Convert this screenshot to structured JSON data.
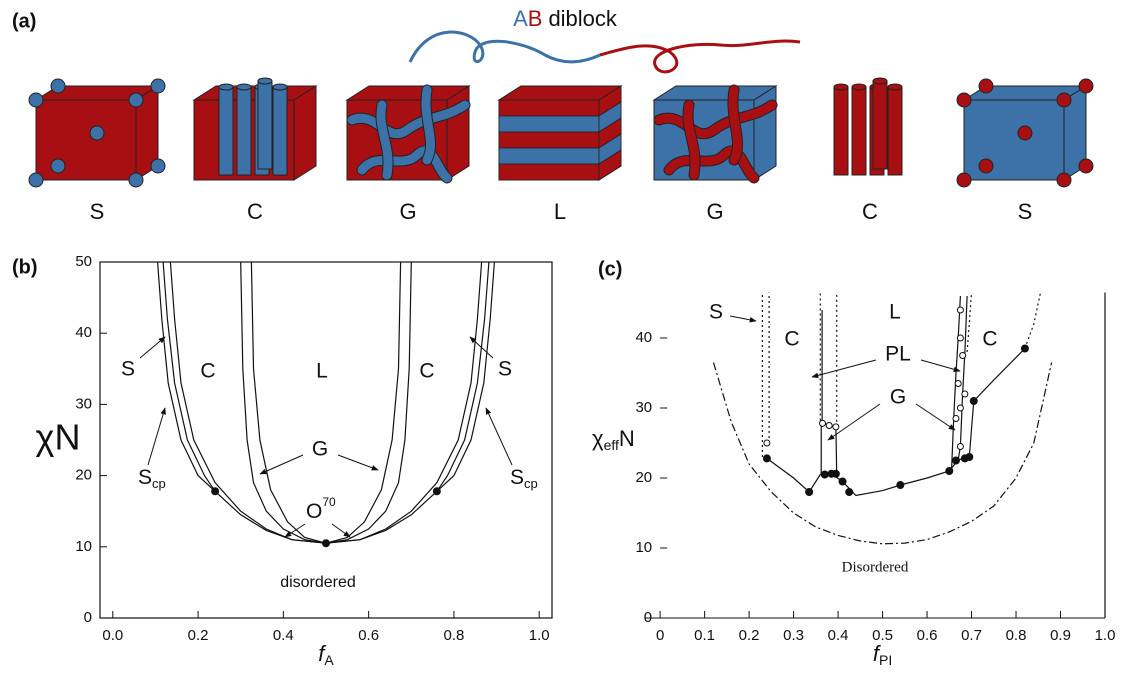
{
  "panel_a": {
    "label": "(a)",
    "title": [
      "A",
      "B",
      "diblock"
    ],
    "structures": [
      "S",
      "C",
      "G",
      "L",
      "G",
      "C",
      "S"
    ]
  },
  "chart_data": [
    {
      "type": "line",
      "panel_label": "(b)",
      "ylabel": "χN",
      "xlabel": "f",
      "xlabel_sub": "A",
      "xlim": [
        -0.03,
        1.03
      ],
      "ylim": [
        0,
        50
      ],
      "xticks": [
        {
          "value": 0,
          "label": "0.0"
        },
        {
          "value": 0.2,
          "label": "0.2"
        },
        {
          "value": 0.4,
          "label": "0.4"
        },
        {
          "value": 0.6,
          "label": "0.6"
        },
        {
          "value": 0.8,
          "label": "0.8"
        },
        {
          "value": 1,
          "label": "1.0"
        }
      ],
      "yticks": [
        0,
        10,
        20,
        30,
        40,
        50
      ],
      "region_labels": [
        "S",
        "C",
        "L",
        "C",
        "S",
        "G",
        "disordered"
      ],
      "sub_labels": [
        {
          "main": "S",
          "sub": "cp"
        },
        {
          "main": "S",
          "sub": "cp"
        }
      ],
      "sup_label": {
        "main": "O",
        "sup": "70"
      },
      "color": "#111111",
      "lines": [
        {
          "style": "solid",
          "x": [
            0.105,
            0.115,
            0.13,
            0.16,
            0.2,
            0.24,
            0.3,
            0.36,
            0.42,
            0.5
          ],
          "y": [
            50,
            42,
            33,
            25,
            20,
            17.8,
            14.5,
            12.3,
            11,
            10.5
          ]
        },
        {
          "style": "solid",
          "x": [
            0.118,
            0.128,
            0.145,
            0.175,
            0.215,
            0.24
          ],
          "y": [
            50,
            42,
            33,
            25,
            20,
            17.8
          ]
        },
        {
          "style": "solid",
          "x": [
            0.135,
            0.145,
            0.16,
            0.19,
            0.24,
            0.3,
            0.36,
            0.42,
            0.5
          ],
          "y": [
            50,
            42,
            33,
            25,
            19,
            15,
            12.5,
            11,
            10.5
          ]
        },
        {
          "style": "solid",
          "x": [
            0.3,
            0.305,
            0.315,
            0.33,
            0.36,
            0.4,
            0.45,
            0.5
          ],
          "y": [
            50,
            35,
            25,
            19,
            15,
            12.5,
            11,
            10.5
          ]
        },
        {
          "style": "solid",
          "x": [
            0.325,
            0.33,
            0.345,
            0.37,
            0.41,
            0.45,
            0.5
          ],
          "y": [
            50,
            35,
            25,
            18,
            13.5,
            11.3,
            10.5
          ]
        },
        {
          "style": "solid",
          "x": [
            0.895,
            0.885,
            0.87,
            0.84,
            0.8,
            0.76,
            0.7,
            0.64,
            0.58,
            0.5
          ],
          "y": [
            50,
            42,
            33,
            25,
            20,
            17.8,
            14.5,
            12.3,
            11,
            10.5
          ]
        },
        {
          "style": "solid",
          "x": [
            0.882,
            0.872,
            0.855,
            0.825,
            0.785,
            0.76
          ],
          "y": [
            50,
            42,
            33,
            25,
            20,
            17.8
          ]
        },
        {
          "style": "solid",
          "x": [
            0.865,
            0.855,
            0.84,
            0.81,
            0.76,
            0.7,
            0.64,
            0.58,
            0.5
          ],
          "y": [
            50,
            42,
            33,
            25,
            19,
            15,
            12.5,
            11,
            10.5
          ]
        },
        {
          "style": "solid",
          "x": [
            0.7,
            0.695,
            0.685,
            0.67,
            0.64,
            0.6,
            0.55,
            0.5
          ],
          "y": [
            50,
            35,
            25,
            19,
            15,
            12.5,
            11,
            10.5
          ]
        },
        {
          "style": "solid",
          "x": [
            0.675,
            0.67,
            0.655,
            0.63,
            0.59,
            0.55,
            0.5
          ],
          "y": [
            50,
            35,
            25,
            18,
            13.5,
            11.3,
            10.5
          ]
        }
      ],
      "filled_points": {
        "x": [
          0.24,
          0.5,
          0.76
        ],
        "y": [
          17.8,
          10.5,
          17.8
        ]
      }
    },
    {
      "type": "line",
      "panel_label": "(c)",
      "ylabel": "χ",
      "ylabel_sub": "eff",
      "ylabel_tail": "N",
      "xlabel": "f",
      "xlabel_sub": "PI",
      "xlim": [
        -0.034,
        1
      ],
      "ylim": [
        0,
        46.5
      ],
      "xticks": [
        0,
        0.1,
        0.2,
        0.3,
        0.4,
        0.5,
        0.6,
        0.7,
        0.8,
        0.9,
        {
          "value": 1,
          "label": "1.0"
        }
      ],
      "yticks": [
        0,
        10,
        20,
        30,
        40
      ],
      "region_labels": [
        "S",
        "C",
        "L",
        "C",
        "PL",
        "G",
        "Disordered"
      ],
      "color": "#111111",
      "lines": [
        {
          "style": "solid",
          "x": [
            0.24,
            0.3,
            0.335,
            0.36,
            0.385,
            0.41,
            0.44,
            0.5,
            0.54,
            0.6,
            0.65,
            0.67,
            0.695
          ],
          "y": [
            22.8,
            20,
            18,
            20.5,
            20.6,
            19.5,
            17.5,
            18.2,
            19,
            20,
            21,
            22.6,
            23
          ]
        },
        {
          "style": "solid",
          "x": [
            0.362,
            0.362,
            0.368,
            0.395,
            0.397
          ],
          "y": [
            20.5,
            27.5,
            27.8,
            27.3,
            20.6
          ]
        },
        {
          "style": "solid",
          "x": [
            0.364,
            0.364
          ],
          "y": [
            27.8,
            44
          ]
        },
        {
          "style": "solid",
          "x": [
            0.655,
            0.66,
            0.665,
            0.67,
            0.675
          ],
          "y": [
            21,
            28.5,
            35,
            40,
            46
          ]
        },
        {
          "style": "solid",
          "x": [
            0.67,
            0.675,
            0.68,
            0.685,
            0.69
          ],
          "y": [
            22.6,
            24.5,
            32,
            38,
            46
          ]
        },
        {
          "style": "solid",
          "x": [
            0.695,
            0.7,
            0.705,
            0.75,
            0.82
          ],
          "y": [
            23,
            27,
            31,
            34,
            38.5
          ]
        },
        {
          "style": "dotted",
          "x": [
            0.23,
            0.23
          ],
          "y": [
            23,
            46.5
          ]
        },
        {
          "style": "dotted",
          "x": [
            0.245,
            0.245
          ],
          "y": [
            25,
            46.5
          ]
        },
        {
          "style": "dotted",
          "x": [
            0.36,
            0.36
          ],
          "y": [
            27.5,
            46.5
          ]
        },
        {
          "style": "dotted",
          "x": [
            0.397,
            0.397
          ],
          "y": [
            27.3,
            46.5
          ]
        },
        {
          "style": "dotted",
          "x": [
            0.69,
            0.695,
            0.7
          ],
          "y": [
            38,
            42,
            46.5
          ]
        },
        {
          "style": "dotted",
          "x": [
            0.82,
            0.84,
            0.85,
            0.855
          ],
          "y": [
            38.5,
            42,
            45,
            46.5
          ]
        },
        {
          "style": "dashdot",
          "x": [
            0.12,
            0.16,
            0.2,
            0.25,
            0.3,
            0.35,
            0.4,
            0.45,
            0.5,
            0.55,
            0.6,
            0.65,
            0.7,
            0.75,
            0.8,
            0.84,
            0.88
          ],
          "y": [
            36.5,
            28,
            22,
            18,
            15,
            13,
            11.8,
            11,
            10.6,
            10.7,
            11.2,
            12.3,
            13.8,
            16,
            20,
            25,
            36.5
          ]
        }
      ],
      "filled_points": {
        "x": [
          0.24,
          0.335,
          0.37,
          0.385,
          0.395,
          0.41,
          0.425,
          0.54,
          0.65,
          0.665,
          0.685,
          0.695,
          0.705,
          0.82
        ],
        "y": [
          22.8,
          18,
          20.5,
          20.6,
          20.6,
          19.5,
          18,
          19,
          21,
          22.5,
          22.8,
          23,
          31,
          38.5
        ]
      },
      "open_points": {
        "x": [
          0.24,
          0.365,
          0.38,
          0.395,
          0.675,
          0.665,
          0.675,
          0.685,
          0.67,
          0.68,
          0.675,
          0.675
        ],
        "y": [
          25,
          27.8,
          27.5,
          27.3,
          24.5,
          28.5,
          30,
          32,
          33.5,
          37.5,
          40,
          44
        ]
      }
    }
  ]
}
